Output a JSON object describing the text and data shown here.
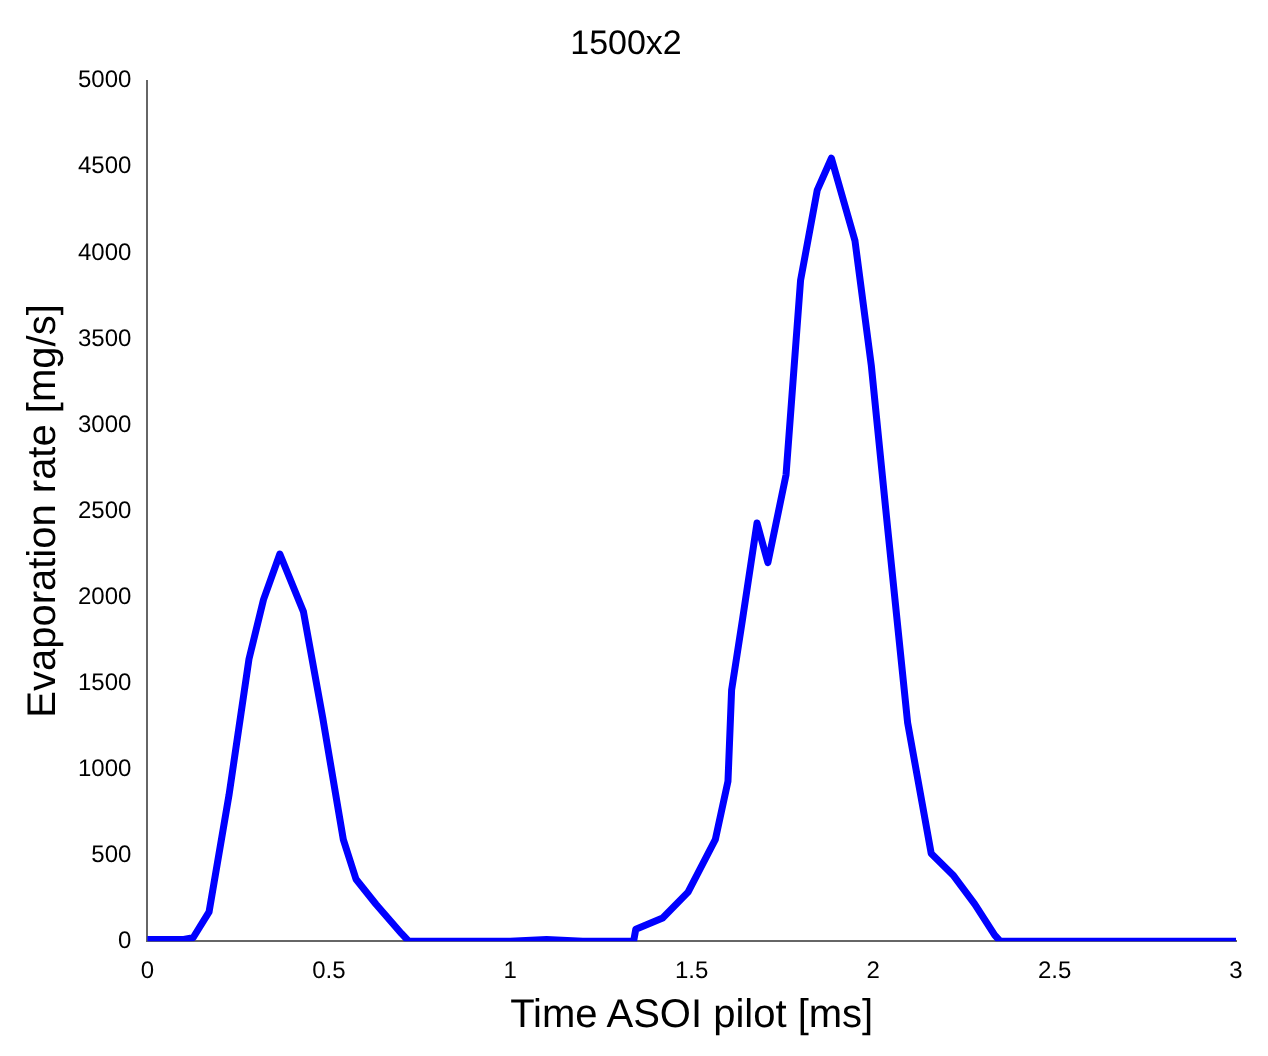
{
  "chart_data": {
    "type": "line",
    "title": "1500x2",
    "xlabel": "Time ASOI pilot [ms]",
    "ylabel": "Evaporation rate [mg/s]",
    "x": [
      0,
      0.1,
      0.126,
      0.17,
      0.225,
      0.28,
      0.32,
      0.365,
      0.43,
      0.483,
      0.54,
      0.575,
      0.63,
      0.7,
      0.72,
      1.0,
      1.1,
      1.2,
      1.34,
      1.346,
      1.42,
      1.49,
      1.565,
      1.6,
      1.61,
      1.64,
      1.68,
      1.71,
      1.76,
      1.8,
      1.846,
      1.885,
      1.95,
      1.995,
      2.04,
      2.095,
      2.16,
      2.22,
      2.28,
      2.335,
      2.35,
      3.0
    ],
    "series": [
      {
        "color": "#0000ff",
        "values": [
          10,
          10,
          20,
          170,
          850,
          1640,
          1985,
          2250,
          1915,
          1300,
          590,
          360,
          215,
          45,
          0,
          0,
          10,
          0,
          0,
          70,
          135,
          285,
          590,
          930,
          1460,
          1870,
          2430,
          2200,
          2710,
          3840,
          4365,
          4550,
          4070,
          3345,
          2400,
          1270,
          510,
          385,
          215,
          35,
          0,
          0
        ]
      }
    ],
    "xlim": [
      0,
      3
    ],
    "xticks": [
      0,
      0.5,
      1,
      1.5,
      2,
      2.5,
      3
    ],
    "ylim": [
      0,
      5000
    ],
    "yticks": [
      0,
      500,
      1000,
      1500,
      2000,
      2500,
      3000,
      3500,
      4000,
      4500,
      5000
    ],
    "grid": false,
    "legend": false,
    "marker": "none",
    "line_style": "solid"
  }
}
